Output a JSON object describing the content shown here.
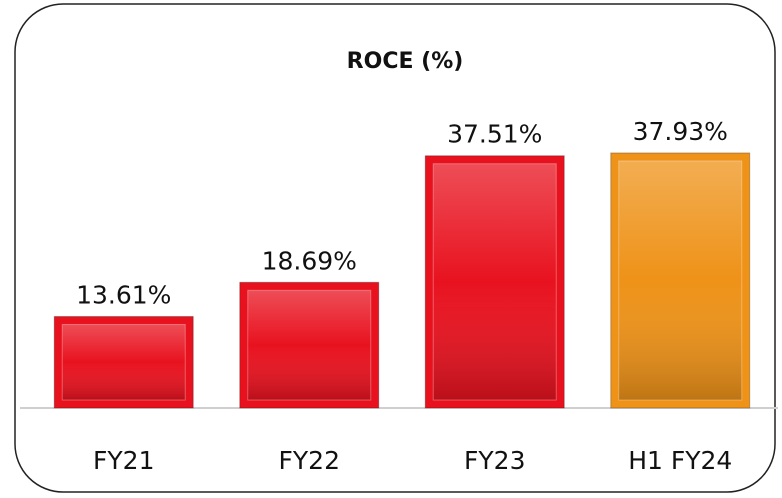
{
  "chart_data": {
    "type": "bar",
    "title": "ROCE (%)",
    "categories": [
      "FY21",
      "FY22",
      "FY23",
      "H1 FY24"
    ],
    "values": [
      13.61,
      18.69,
      37.51,
      37.93
    ],
    "value_labels": [
      "13.61%",
      "18.69%",
      "37.51%",
      "37.93%"
    ],
    "colors": [
      "#e8121f",
      "#e8121f",
      "#e8121f",
      "#ee9218"
    ],
    "ylim": [
      0,
      40
    ]
  }
}
